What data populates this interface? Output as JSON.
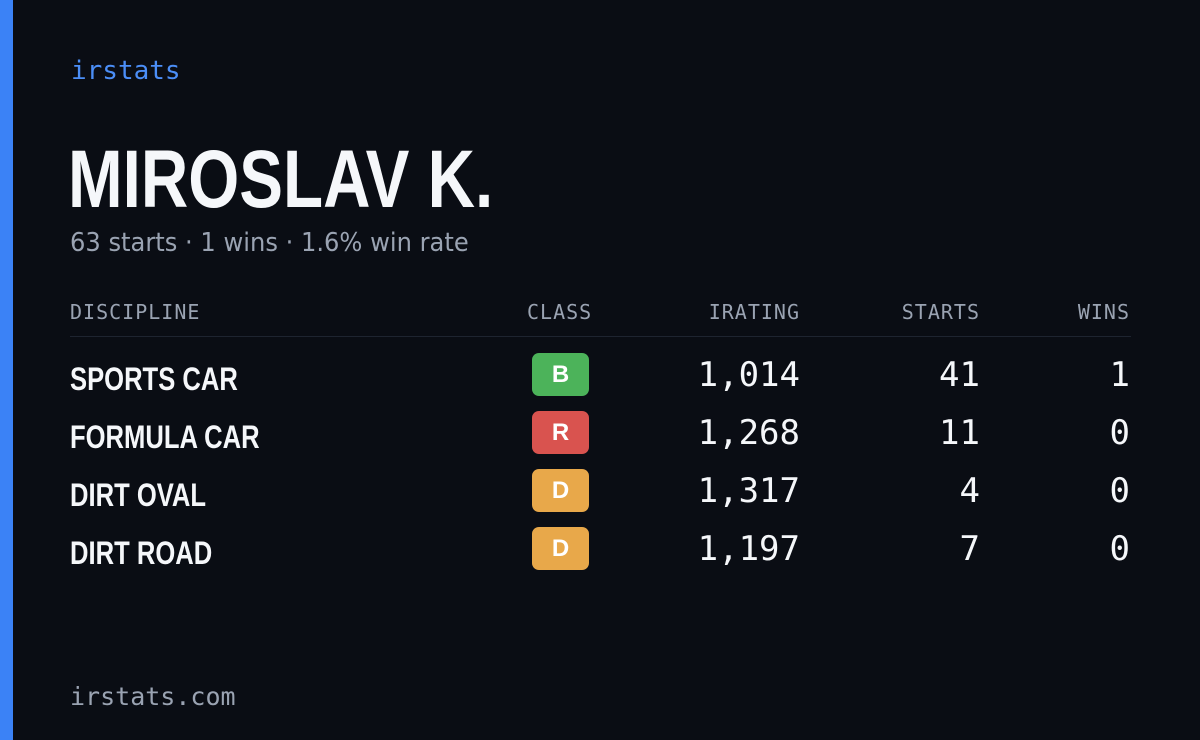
{
  "brand": "irstats",
  "player": {
    "name": "MIROSLAV K.",
    "summary": "63 starts · 1 wins · 1.6% win rate"
  },
  "table": {
    "headers": {
      "discipline": "DISCIPLINE",
      "class": "CLASS",
      "irating": "IRATING",
      "starts": "STARTS",
      "wins": "WINS"
    },
    "rows": [
      {
        "discipline": "SPORTS CAR",
        "class": "B",
        "class_color": "#4cb35a",
        "irating": "1,014",
        "starts": "41",
        "wins": "1"
      },
      {
        "discipline": "FORMULA CAR",
        "class": "R",
        "class_color": "#d9534f",
        "irating": "1,268",
        "starts": "11",
        "wins": "0"
      },
      {
        "discipline": "DIRT OVAL",
        "class": "D",
        "class_color": "#e8a84a",
        "irating": "1,317",
        "starts": "4",
        "wins": "0"
      },
      {
        "discipline": "DIRT ROAD",
        "class": "D",
        "class_color": "#e8a84a",
        "irating": "1,197",
        "starts": "7",
        "wins": "0"
      }
    ]
  },
  "footer": "irstats.com",
  "colors": {
    "background": "#0a0d14",
    "accent": "#3b82f6"
  }
}
